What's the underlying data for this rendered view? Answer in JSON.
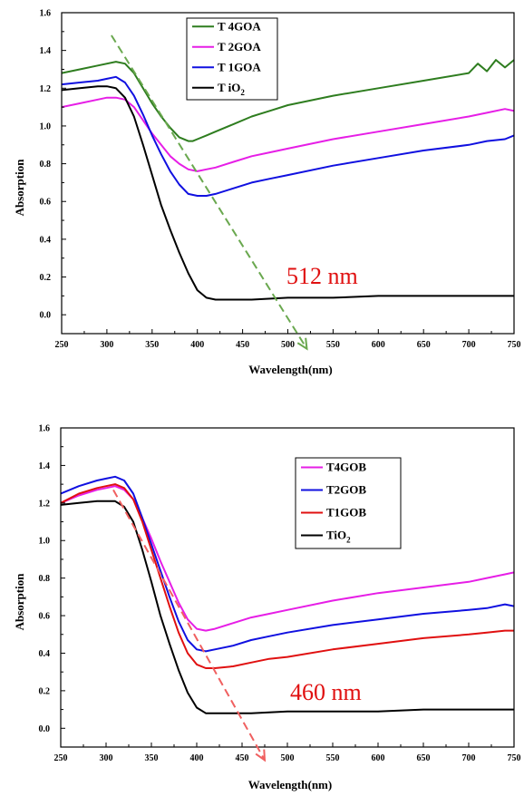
{
  "chart_data": [
    {
      "type": "line",
      "xlabel": "Wavelength(nm)",
      "ylabel": "Absorption",
      "xlim": [
        250,
        750
      ],
      "ylim": [
        -0.1,
        1.6
      ],
      "xticks": [
        250,
        300,
        350,
        400,
        450,
        500,
        550,
        600,
        650,
        700,
        750
      ],
      "yticks": [
        0.0,
        0.2,
        0.4,
        0.6,
        0.8,
        1.0,
        1.2,
        1.4,
        1.6
      ],
      "legend_position": "top-center",
      "series": [
        {
          "name": "T 4GOA",
          "legend_main": "T 4GOA",
          "legend_sub": "",
          "color": "#2e7d1f",
          "x": [
            250,
            270,
            290,
            310,
            320,
            330,
            340,
            350,
            360,
            370,
            380,
            390,
            395,
            400,
            410,
            420,
            440,
            460,
            480,
            500,
            550,
            600,
            650,
            700,
            710,
            720,
            730,
            740,
            750
          ],
          "y": [
            1.28,
            1.3,
            1.32,
            1.34,
            1.33,
            1.28,
            1.2,
            1.12,
            1.05,
            0.99,
            0.94,
            0.92,
            0.92,
            0.93,
            0.95,
            0.97,
            1.01,
            1.05,
            1.08,
            1.11,
            1.16,
            1.2,
            1.24,
            1.28,
            1.33,
            1.29,
            1.35,
            1.31,
            1.35
          ]
        },
        {
          "name": "T 2GOA",
          "legend_main": "T 2GOA",
          "legend_sub": "",
          "color": "#e61ee6",
          "x": [
            250,
            270,
            290,
            300,
            310,
            320,
            330,
            340,
            350,
            360,
            370,
            380,
            390,
            400,
            410,
            420,
            440,
            460,
            480,
            500,
            550,
            600,
            650,
            700,
            720,
            740,
            750
          ],
          "y": [
            1.1,
            1.12,
            1.14,
            1.15,
            1.15,
            1.14,
            1.1,
            1.03,
            0.96,
            0.9,
            0.84,
            0.8,
            0.77,
            0.76,
            0.77,
            0.78,
            0.81,
            0.84,
            0.86,
            0.88,
            0.93,
            0.97,
            1.01,
            1.05,
            1.07,
            1.09,
            1.08
          ]
        },
        {
          "name": "T 1GOA",
          "legend_main": "T 1GOA",
          "legend_sub": "",
          "color": "#1010e0",
          "x": [
            250,
            270,
            290,
            300,
            310,
            320,
            330,
            340,
            350,
            360,
            370,
            380,
            390,
            400,
            410,
            420,
            440,
            460,
            480,
            500,
            550,
            600,
            650,
            700,
            720,
            740,
            750
          ],
          "y": [
            1.22,
            1.23,
            1.24,
            1.25,
            1.26,
            1.23,
            1.16,
            1.06,
            0.95,
            0.85,
            0.76,
            0.69,
            0.64,
            0.63,
            0.63,
            0.64,
            0.67,
            0.7,
            0.72,
            0.74,
            0.79,
            0.83,
            0.87,
            0.9,
            0.92,
            0.93,
            0.95
          ]
        },
        {
          "name": "T iO2",
          "legend_main": "T iO",
          "legend_sub": "2",
          "color": "#000000",
          "x": [
            250,
            270,
            290,
            300,
            310,
            320,
            330,
            340,
            350,
            360,
            370,
            380,
            390,
            400,
            410,
            420,
            430,
            440,
            460,
            500,
            550,
            600,
            650,
            700,
            750
          ],
          "y": [
            1.19,
            1.2,
            1.21,
            1.21,
            1.2,
            1.15,
            1.05,
            0.9,
            0.74,
            0.58,
            0.45,
            0.33,
            0.22,
            0.13,
            0.09,
            0.08,
            0.08,
            0.08,
            0.08,
            0.09,
            0.09,
            0.1,
            0.1,
            0.1,
            0.1
          ]
        }
      ],
      "arrow": {
        "from": [
          305,
          1.48
        ],
        "to": [
          521,
          -0.18
        ],
        "color": "#6aa84f"
      },
      "annotation": {
        "text": "512 nm",
        "x": 515,
        "y": 0.22,
        "color": "#e01010"
      }
    },
    {
      "type": "line",
      "xlabel": "Wavelength(nm)",
      "ylabel": "Absorption",
      "xlim": [
        250,
        750
      ],
      "ylim": [
        -0.1,
        1.6
      ],
      "xticks": [
        250,
        300,
        350,
        400,
        450,
        500,
        550,
        600,
        650,
        700,
        750
      ],
      "yticks": [
        0.0,
        0.2,
        0.4,
        0.6,
        0.8,
        1.0,
        1.2,
        1.4,
        1.6
      ],
      "legend_position": "top-right",
      "series": [
        {
          "name": "T4GOB",
          "legend_main": "T4GOB",
          "legend_sub": "",
          "color": "#e61ee6",
          "x": [
            250,
            270,
            290,
            300,
            310,
            320,
            330,
            340,
            350,
            360,
            370,
            380,
            390,
            400,
            410,
            420,
            440,
            460,
            480,
            500,
            550,
            600,
            650,
            700,
            720,
            740,
            750
          ],
          "y": [
            1.2,
            1.24,
            1.27,
            1.28,
            1.29,
            1.27,
            1.22,
            1.12,
            1.01,
            0.89,
            0.78,
            0.67,
            0.58,
            0.53,
            0.52,
            0.53,
            0.56,
            0.59,
            0.61,
            0.63,
            0.68,
            0.72,
            0.75,
            0.78,
            0.8,
            0.82,
            0.83
          ]
        },
        {
          "name": "T2GOB",
          "legend_main": "T2GOB",
          "legend_sub": "",
          "color": "#1010e0",
          "x": [
            250,
            270,
            290,
            300,
            310,
            320,
            330,
            340,
            350,
            360,
            370,
            380,
            390,
            400,
            410,
            420,
            440,
            460,
            480,
            500,
            550,
            600,
            650,
            700,
            720,
            740,
            750
          ],
          "y": [
            1.25,
            1.29,
            1.32,
            1.33,
            1.34,
            1.32,
            1.25,
            1.12,
            0.98,
            0.84,
            0.7,
            0.57,
            0.47,
            0.42,
            0.41,
            0.42,
            0.44,
            0.47,
            0.49,
            0.51,
            0.55,
            0.58,
            0.61,
            0.63,
            0.64,
            0.66,
            0.65
          ]
        },
        {
          "name": "T1GOB",
          "legend_main": "T1GOB",
          "legend_sub": "",
          "color": "#e01010",
          "x": [
            250,
            270,
            290,
            300,
            310,
            320,
            330,
            340,
            350,
            360,
            370,
            380,
            390,
            400,
            410,
            420,
            440,
            460,
            480,
            500,
            550,
            600,
            650,
            700,
            720,
            740,
            750
          ],
          "y": [
            1.2,
            1.25,
            1.28,
            1.29,
            1.3,
            1.28,
            1.22,
            1.1,
            0.95,
            0.8,
            0.65,
            0.51,
            0.4,
            0.34,
            0.32,
            0.32,
            0.33,
            0.35,
            0.37,
            0.38,
            0.42,
            0.45,
            0.48,
            0.5,
            0.51,
            0.52,
            0.52
          ]
        },
        {
          "name": "TiO2",
          "legend_main": "TiO",
          "legend_sub": "2",
          "color": "#000000",
          "x": [
            250,
            270,
            290,
            300,
            310,
            320,
            330,
            340,
            350,
            360,
            370,
            380,
            390,
            400,
            410,
            420,
            430,
            440,
            460,
            500,
            550,
            600,
            650,
            700,
            750
          ],
          "y": [
            1.19,
            1.2,
            1.21,
            1.21,
            1.21,
            1.18,
            1.1,
            0.95,
            0.78,
            0.6,
            0.45,
            0.31,
            0.19,
            0.11,
            0.08,
            0.08,
            0.08,
            0.08,
            0.08,
            0.09,
            0.09,
            0.09,
            0.1,
            0.1,
            0.1
          ]
        }
      ],
      "arrow": {
        "from": [
          308,
          1.27
        ],
        "to": [
          475,
          -0.17
        ],
        "color": "#f06060"
      },
      "annotation": {
        "text": "460 nm",
        "x": 505,
        "y": 0.22,
        "color": "#e01010"
      }
    }
  ]
}
